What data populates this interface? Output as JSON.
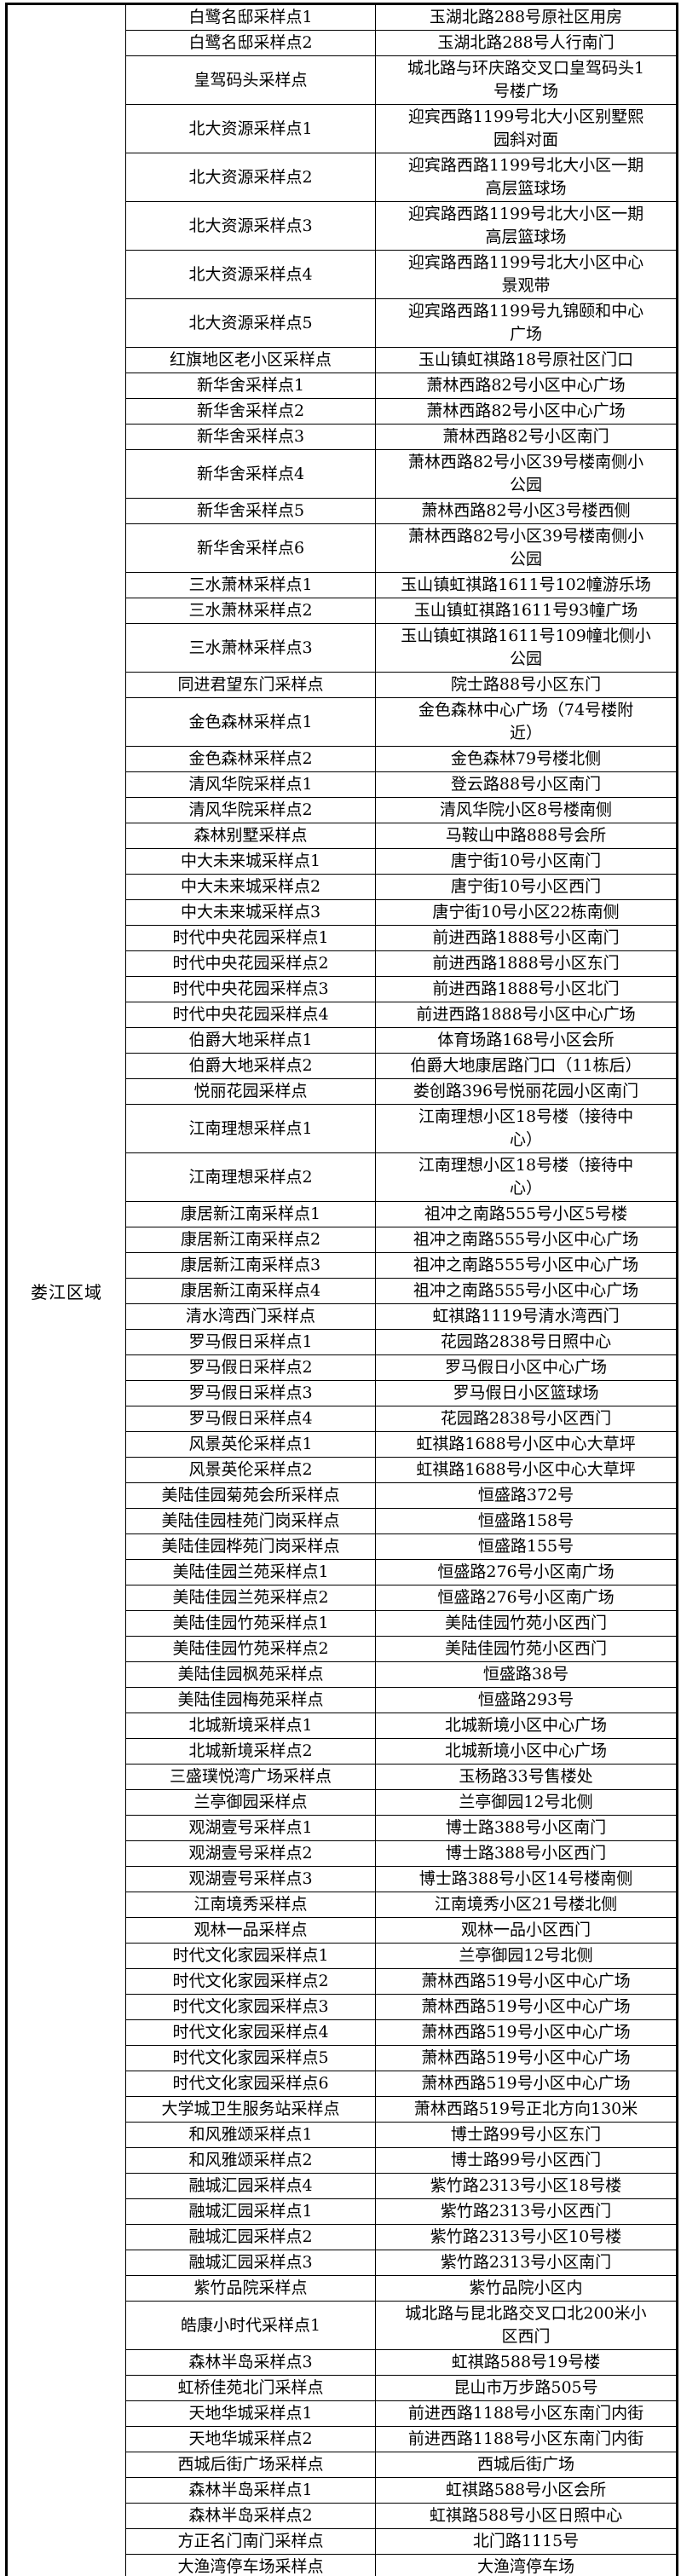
{
  "region_label": "娄江区域",
  "colors": {
    "text": "#000000",
    "border": "#000000",
    "background": "#ffffff"
  },
  "table": {
    "columns": [
      "region",
      "site_name",
      "site_address"
    ],
    "rows": [
      {
        "name": "白鹭名邸采样点1",
        "address": "玉湖北路288号原社区用房"
      },
      {
        "name": "白鹭名邸采样点2",
        "address": "玉湖北路288号人行南门"
      },
      {
        "name": "皇驾码头采样点",
        "address": "城北路与环庆路交叉口皇驾码头1\n号楼广场"
      },
      {
        "name": "北大资源采样点1",
        "address": "迎宾西路1199号北大小区别墅熙\n园斜对面"
      },
      {
        "name": "北大资源采样点2",
        "address": "迎宾路西路1199号北大小区一期\n高层篮球场"
      },
      {
        "name": "北大资源采样点3",
        "address": "迎宾路西路1199号北大小区一期\n高层篮球场"
      },
      {
        "name": "北大资源采样点4",
        "address": "迎宾路西路1199号北大小区中心\n景观带"
      },
      {
        "name": "北大资源采样点5",
        "address": "迎宾路西路1199号九锦颐和中心\n广场"
      },
      {
        "name": "红旗地区老小区采样点",
        "address": "玉山镇虹祺路18号原社区门口"
      },
      {
        "name": "新华舍采样点1",
        "address": "萧林西路82号小区中心广场"
      },
      {
        "name": "新华舍采样点2",
        "address": "萧林西路82号小区中心广场"
      },
      {
        "name": "新华舍采样点3",
        "address": "萧林西路82号小区南门"
      },
      {
        "name": "新华舍采样点4",
        "address": "萧林西路82号小区39号楼南侧小\n公园"
      },
      {
        "name": "新华舍采样点5",
        "address": "萧林西路82号小区3号楼西侧"
      },
      {
        "name": "新华舍采样点6",
        "address": "萧林西路82号小区39号楼南侧小\n公园"
      },
      {
        "name": "三水萧林采样点1",
        "address": "玉山镇虹祺路1611号102幢游乐场"
      },
      {
        "name": "三水萧林采样点2",
        "address": "玉山镇虹祺路1611号93幢广场"
      },
      {
        "name": "三水萧林采样点3",
        "address": "玉山镇虹祺路1611号109幢北侧小\n公园"
      },
      {
        "name": "同进君望东门采样点",
        "address": "院士路88号小区东门"
      },
      {
        "name": "金色森林采样点1",
        "address": "金色森林中心广场（74号楼附\n近）"
      },
      {
        "name": "金色森林采样点2",
        "address": "金色森林79号楼北侧"
      },
      {
        "name": "清风华院采样点1",
        "address": "登云路88号小区南门"
      },
      {
        "name": "清风华院采样点2",
        "address": "清风华院小区8号楼南侧"
      },
      {
        "name": "森林别墅采样点",
        "address": "马鞍山中路888号会所"
      },
      {
        "name": "中大未来城采样点1",
        "address": "唐宁街10号小区南门"
      },
      {
        "name": "中大未来城采样点2",
        "address": "唐宁街10号小区西门"
      },
      {
        "name": "中大未来城采样点3",
        "address": "唐宁街10号小区22栋南侧"
      },
      {
        "name": "时代中央花园采样点1",
        "address": "前进西路1888号小区南门"
      },
      {
        "name": "时代中央花园采样点2",
        "address": "前进西路1888号小区东门"
      },
      {
        "name": "时代中央花园采样点3",
        "address": "前进西路1888号小区北门"
      },
      {
        "name": "时代中央花园采样点4",
        "address": "前进西路1888号小区中心广场"
      },
      {
        "name": "伯爵大地采样点1",
        "address": "体育场路168号小区会所"
      },
      {
        "name": "伯爵大地采样点2",
        "address": "伯爵大地康居路门口（11栋后）"
      },
      {
        "name": "悦丽花园采样点",
        "address": "娄创路396号悦丽花园小区南门"
      },
      {
        "name": "江南理想采样点1",
        "address": "江南理想小区18号楼（接待中\n心）"
      },
      {
        "name": "江南理想采样点2",
        "address": "江南理想小区18号楼（接待中\n心）"
      },
      {
        "name": "康居新江南采样点1",
        "address": "祖冲之南路555号小区5号楼"
      },
      {
        "name": "康居新江南采样点2",
        "address": "祖冲之南路555号小区中心广场"
      },
      {
        "name": "康居新江南采样点3",
        "address": "祖冲之南路555号小区中心广场"
      },
      {
        "name": "康居新江南采样点4",
        "address": "祖冲之南路555号小区中心广场"
      },
      {
        "name": "清水湾西门采样点",
        "address": "虹祺路1119号清水湾西门"
      },
      {
        "name": "罗马假日采样点1",
        "address": "花园路2838号日照中心"
      },
      {
        "name": "罗马假日采样点2",
        "address": "罗马假日小区中心广场"
      },
      {
        "name": "罗马假日采样点3",
        "address": "罗马假日小区篮球场"
      },
      {
        "name": "罗马假日采样点4",
        "address": "花园路2838号小区西门"
      },
      {
        "name": "风景英伦采样点1",
        "address": "虹祺路1688号小区中心大草坪"
      },
      {
        "name": "风景英伦采样点2",
        "address": "虹祺路1688号小区中心大草坪"
      },
      {
        "name": "美陆佳园菊苑会所采样点",
        "address": "恒盛路372号"
      },
      {
        "name": "美陆佳园桂苑门岗采样点",
        "address": "恒盛路158号"
      },
      {
        "name": "美陆佳园桦苑门岗采样点",
        "address": "恒盛路155号"
      },
      {
        "name": "美陆佳园兰苑采样点1",
        "address": "恒盛路276号小区南广场"
      },
      {
        "name": "美陆佳园兰苑采样点2",
        "address": "恒盛路276号小区南广场"
      },
      {
        "name": "美陆佳园竹苑采样点1",
        "address": "美陆佳园竹苑小区西门"
      },
      {
        "name": "美陆佳园竹苑采样点2",
        "address": "美陆佳园竹苑小区西门"
      },
      {
        "name": "美陆佳园枫苑采样点",
        "address": "恒盛路38号"
      },
      {
        "name": "美陆佳园梅苑采样点",
        "address": "恒盛路293号"
      },
      {
        "name": "北城新境采样点1",
        "address": "北城新境小区中心广场"
      },
      {
        "name": "北城新境采样点2",
        "address": "北城新境小区中心广场"
      },
      {
        "name": "三盛璞悦湾广场采样点",
        "address": "玉杨路33号售楼处"
      },
      {
        "name": "兰亭御园采样点",
        "address": "兰亭御园12号北侧"
      },
      {
        "name": "观湖壹号采样点1",
        "address": "博士路388号小区南门"
      },
      {
        "name": "观湖壹号采样点2",
        "address": "博士路388号小区西门"
      },
      {
        "name": "观湖壹号采样点3",
        "address": "博士路388号小区14号楼南侧"
      },
      {
        "name": "江南境秀采样点",
        "address": "江南境秀小区21号楼北侧"
      },
      {
        "name": "观林一品采样点",
        "address": "观林一品小区西门"
      },
      {
        "name": "时代文化家园采样点1",
        "address": "兰亭御园12号北侧"
      },
      {
        "name": "时代文化家园采样点2",
        "address": "萧林西路519号小区中心广场"
      },
      {
        "name": "时代文化家园采样点3",
        "address": "萧林西路519号小区中心广场"
      },
      {
        "name": "时代文化家园采样点4",
        "address": "萧林西路519号小区中心广场"
      },
      {
        "name": "时代文化家园采样点5",
        "address": "萧林西路519号小区中心广场"
      },
      {
        "name": "时代文化家园采样点6",
        "address": "萧林西路519号小区中心广场"
      },
      {
        "name": "大学城卫生服务站采样点",
        "address": "萧林西路519号正北方向130米"
      },
      {
        "name": "和风雅颂采样点1",
        "address": "博士路99号小区东门"
      },
      {
        "name": "和风雅颂采样点2",
        "address": "博士路99号小区西门"
      },
      {
        "name": "融城汇园采样点4",
        "address": "紫竹路2313号小区18号楼"
      },
      {
        "name": "融城汇园采样点1",
        "address": "紫竹路2313号小区西门"
      },
      {
        "name": "融城汇园采样点2",
        "address": "紫竹路2313号小区10号楼"
      },
      {
        "name": "融城汇园采样点3",
        "address": "紫竹路2313号小区南门"
      },
      {
        "name": "紫竹品院采样点",
        "address": "紫竹品院小区内"
      },
      {
        "name": "皓康小时代采样点1",
        "address": "城北路与昆北路交叉口北200米小\n区西门"
      },
      {
        "name": "森林半岛采样点3",
        "address": "虹祺路588号19号楼"
      },
      {
        "name": "虹桥佳苑北门采样点",
        "address": "昆山市万步路505号"
      },
      {
        "name": "天地华城采样点1",
        "address": "前进西路1188号小区东南门内街"
      },
      {
        "name": "天地华城采样点2",
        "address": "前进西路1188号小区东南门内街"
      },
      {
        "name": "西城后街广场采样点",
        "address": "西城后街广场"
      },
      {
        "name": "森林半岛采样点1",
        "address": "虹祺路588号小区会所"
      },
      {
        "name": "森林半岛采样点2",
        "address": "虹祺路588号小区日照中心"
      },
      {
        "name": "方正名门南门采样点",
        "address": "北门路1115号"
      },
      {
        "name": "大渔湾停车场采样点",
        "address": "大渔湾停车场"
      }
    ]
  }
}
